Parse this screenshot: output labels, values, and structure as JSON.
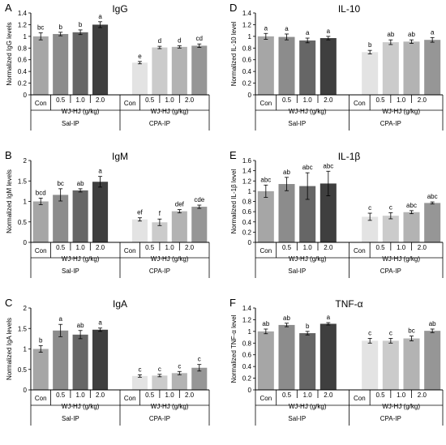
{
  "figure": {
    "group_labels": [
      "Sal-IP",
      "CPA-IP"
    ],
    "dose_header": "WJ-HJ (g/kg)",
    "subgroup_labels": [
      "Con",
      "0.5",
      "1.0",
      "2.0"
    ]
  },
  "chart_data": [
    {
      "panel": "A",
      "type": "bar",
      "title": "IgG",
      "ylabel": "Normalized IgG levels",
      "ylim": [
        0,
        1.4
      ],
      "yticks": [
        0,
        0.2,
        0.4,
        0.6,
        0.8,
        1,
        1.2,
        1.4
      ],
      "ytick_labels": [
        "0",
        "0.2",
        "0.4",
        "0.6",
        "0.8",
        "1",
        "1.2",
        "1.4"
      ],
      "categories": [
        "Sal-IP Con",
        "Sal-IP 0.5",
        "Sal-IP 1.0",
        "Sal-IP 2.0",
        "CPA-IP Con",
        "CPA-IP 0.5",
        "CPA-IP 1.0",
        "CPA-IP 2.0"
      ],
      "values": [
        1.0,
        1.04,
        1.07,
        1.2,
        0.55,
        0.81,
        0.82,
        0.84
      ],
      "errors": [
        0.06,
        0.03,
        0.04,
        0.05,
        0.02,
        0.02,
        0.02,
        0.03
      ],
      "letters": [
        "bc",
        "b",
        "b",
        "a",
        "e",
        "d",
        "d",
        "cd"
      ]
    },
    {
      "panel": "B",
      "type": "bar",
      "title": "IgM",
      "ylabel": "Normalized IgM levels",
      "ylim": [
        0,
        2
      ],
      "yticks": [
        0,
        0.5,
        1,
        1.5,
        2
      ],
      "ytick_labels": [
        "0",
        "0.5",
        "1",
        "1.5",
        "2"
      ],
      "categories": [
        "Sal-IP Con",
        "Sal-IP 0.5",
        "Sal-IP 1.0",
        "Sal-IP 2.0",
        "CPA-IP Con",
        "CPA-IP 0.5",
        "CPA-IP 1.0",
        "CPA-IP 2.0"
      ],
      "values": [
        1.0,
        1.16,
        1.27,
        1.48,
        0.56,
        0.49,
        0.76,
        0.87
      ],
      "errors": [
        0.08,
        0.15,
        0.04,
        0.13,
        0.04,
        0.08,
        0.04,
        0.04
      ],
      "letters": [
        "bcd",
        "bc",
        "ab",
        "a",
        "ef",
        "f",
        "def",
        "cde"
      ]
    },
    {
      "panel": "C",
      "type": "bar",
      "title": "IgA",
      "ylabel": "Normalized IgA levels",
      "ylim": [
        0,
        2
      ],
      "yticks": [
        0,
        0.5,
        1,
        1.5,
        2
      ],
      "ytick_labels": [
        "0",
        "0.5",
        "1",
        "1.5",
        "2"
      ],
      "categories": [
        "Sal-IP Con",
        "Sal-IP 0.5",
        "Sal-IP 1.0",
        "Sal-IP 2.0",
        "CPA-IP Con",
        "CPA-IP 0.5",
        "CPA-IP 1.0",
        "CPA-IP 2.0"
      ],
      "values": [
        1.0,
        1.45,
        1.35,
        1.47,
        0.34,
        0.35,
        0.41,
        0.54
      ],
      "errors": [
        0.08,
        0.15,
        0.1,
        0.04,
        0.03,
        0.03,
        0.04,
        0.08
      ],
      "letters": [
        "b",
        "a",
        "ab",
        "a",
        "c",
        "c",
        "c",
        "c"
      ]
    },
    {
      "panel": "D",
      "type": "bar",
      "title": "IL-10",
      "ylabel": "Normalized IL-10 level",
      "ylim": [
        0,
        1.4
      ],
      "yticks": [
        0,
        0.2,
        0.4,
        0.6,
        0.8,
        1,
        1.2,
        1.4
      ],
      "ytick_labels": [
        "0",
        "0.2",
        "0.4",
        "0.6",
        "0.8",
        "1",
        "1.2",
        "1.4"
      ],
      "categories": [
        "Sal-IP Con",
        "Sal-IP 0.5",
        "Sal-IP 1.0",
        "Sal-IP 2.0",
        "CPA-IP Con",
        "CPA-IP 0.5",
        "CPA-IP 1.0",
        "CPA-IP 2.0"
      ],
      "values": [
        1.0,
        0.99,
        0.93,
        0.97,
        0.73,
        0.9,
        0.91,
        0.94
      ],
      "errors": [
        0.05,
        0.05,
        0.04,
        0.03,
        0.03,
        0.04,
        0.03,
        0.04
      ],
      "letters": [
        "a",
        "a",
        "a",
        "a",
        "b",
        "ab",
        "ab",
        "a"
      ]
    },
    {
      "panel": "E",
      "type": "bar",
      "title": "IL-1β",
      "ylabel": "Normalized IL-1β level",
      "ylim": [
        0,
        1.6
      ],
      "yticks": [
        0,
        0.2,
        0.4,
        0.6,
        0.8,
        1,
        1.2,
        1.4,
        1.6
      ],
      "ytick_labels": [
        "0",
        "0.2",
        "0.4",
        "0.6",
        "0.8",
        "1",
        "1.2",
        "1.4",
        "1.6"
      ],
      "categories": [
        "Sal-IP Con",
        "Sal-IP 0.5",
        "Sal-IP 1.0",
        "Sal-IP 2.0",
        "CPA-IP Con",
        "CPA-IP 0.5",
        "CPA-IP 1.0",
        "CPA-IP 2.0"
      ],
      "values": [
        1.0,
        1.14,
        1.1,
        1.15,
        0.5,
        0.52,
        0.59,
        0.77
      ],
      "errors": [
        0.12,
        0.13,
        0.26,
        0.24,
        0.07,
        0.06,
        0.03,
        0.02
      ],
      "letters": [
        "abc",
        "ab",
        "abc",
        "abc",
        "c",
        "c",
        "abc",
        "abc"
      ]
    },
    {
      "panel": "F",
      "type": "bar",
      "title": "TNF-α",
      "ylabel": "Normalized TNF-α level",
      "ylim": [
        0,
        1.4
      ],
      "yticks": [
        0,
        0.2,
        0.4,
        0.6,
        0.8,
        1,
        1.2,
        1.4
      ],
      "ytick_labels": [
        "0",
        "0.2",
        "0.4",
        "0.6",
        "0.8",
        "1",
        "1.2",
        "1.4"
      ],
      "categories": [
        "Sal-IP Con",
        "Sal-IP 0.5",
        "Sal-IP 1.0",
        "Sal-IP 2.0",
        "CPA-IP Con",
        "CPA-IP 0.5",
        "CPA-IP 1.0",
        "CPA-IP 2.0"
      ],
      "values": [
        1.0,
        1.11,
        0.97,
        1.13,
        0.84,
        0.84,
        0.88,
        1.01
      ],
      "errors": [
        0.04,
        0.03,
        0.03,
        0.02,
        0.04,
        0.04,
        0.04,
        0.03
      ],
      "letters": [
        "ab",
        "ab",
        "b",
        "a",
        "c",
        "c",
        "bc",
        "ab"
      ]
    }
  ],
  "bar_colors": [
    "#a6a6a6",
    "#8c8c8c",
    "#666666",
    "#3f3f3f",
    "#e3e3e3",
    "#cbcbcb",
    "#b3b3b3",
    "#969696"
  ]
}
